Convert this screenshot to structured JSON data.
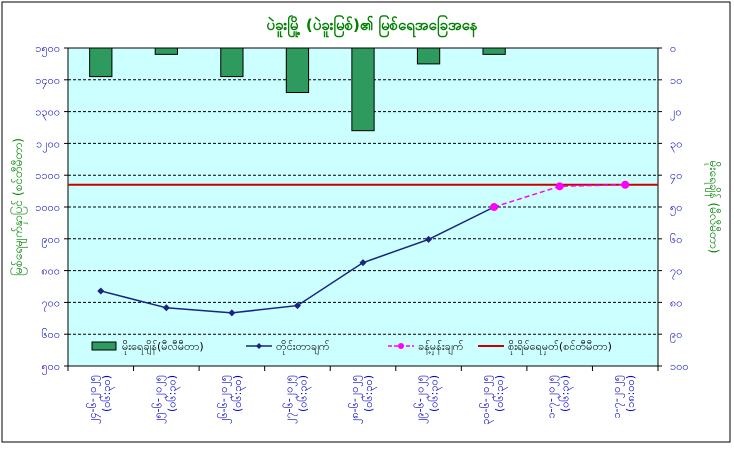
{
  "chart_data": {
    "type": "bar+line",
    "title": "ပဲခူးမြို့ (ပဲခူးမြစ်)၏ မြစ်ရေအခြေအနေ",
    "ylabel_left": "မြစ်ရေမျက်နှာပြင် (စင်တီမီတာ)",
    "ylabel_right": "မိုးရေချိန် (မီလီမီတာ)",
    "left_axis": {
      "min": 500,
      "max": 1500,
      "step": 100
    },
    "right_axis": {
      "min": 0,
      "max": 100,
      "step": 10,
      "reversed": true
    },
    "left_tick_labels": [
      "၅၀၀",
      "၆၀၀",
      "၇၀၀",
      "၈၀၀",
      "၉၀၀",
      "၁၀၀၀",
      "၁၁၀၀",
      "၁၂၀၀",
      "၁၃၀၀",
      "၁၄၀၀",
      "၁၅၀၀"
    ],
    "right_tick_labels": [
      "၀",
      "၁၀",
      "၂၀",
      "၃၀",
      "၄၀",
      "၅၀",
      "၆၀",
      "၇၀",
      "၈၀",
      "၉၀",
      "၁၀၀"
    ],
    "categories": [
      {
        "date": "၂၄-၆-၂၀၂၅",
        "time": "(၀၆:၃၀)"
      },
      {
        "date": "၂၅-၆-၂၀၂၅",
        "time": "(၀၆:၃၀)"
      },
      {
        "date": "၂၆-၆-၂၀၂၅",
        "time": "(၀၆:၃၀)"
      },
      {
        "date": "၂၇-၆-၂၀၂၅",
        "time": "(၀၆:၃၀)"
      },
      {
        "date": "၂၈-၆-၂၀၂၅",
        "time": "(၀၆:၃၀)"
      },
      {
        "date": "၂၉-၆-၂၀၂၅",
        "time": "(၀၆:၃၀)"
      },
      {
        "date": "၃၀-၆-၂၀၂၅",
        "time": "(၀၆:၃၀)"
      },
      {
        "date": "၁-၇-၂၀၂၅",
        "time": "(၀၆:၃၀)"
      },
      {
        "date": "၁-၇-၂၀၂၅",
        "time": "(၁၈:၀၀)"
      }
    ],
    "series": [
      {
        "name": "မိုးရေချိန်(မီလီမီတာ)",
        "kind": "bar",
        "axis": "right",
        "color": "#2e9a5e",
        "values": [
          9,
          2,
          9,
          14,
          26,
          5,
          2,
          null,
          null
        ]
      },
      {
        "name": "တိုင်းတာချက်",
        "kind": "line",
        "axis": "left",
        "color": "#1a237e",
        "values": [
          736,
          683,
          667,
          690,
          825,
          898,
          1000,
          null,
          null
        ]
      },
      {
        "name": "ခန့်မှန်းချက်",
        "kind": "line",
        "axis": "left",
        "color": "#ff00ff",
        "dashed": true,
        "values": [
          null,
          null,
          null,
          null,
          null,
          null,
          1000,
          1065,
          1070
        ]
      },
      {
        "name": "စိုးရိမ်ရေမှတ်(စင်တီမီတာ)",
        "kind": "hline",
        "axis": "left",
        "color": "#cc0000",
        "value": 1070
      }
    ],
    "legend_position": "bottom",
    "grid": true,
    "plot_background": "#ccffff"
  }
}
